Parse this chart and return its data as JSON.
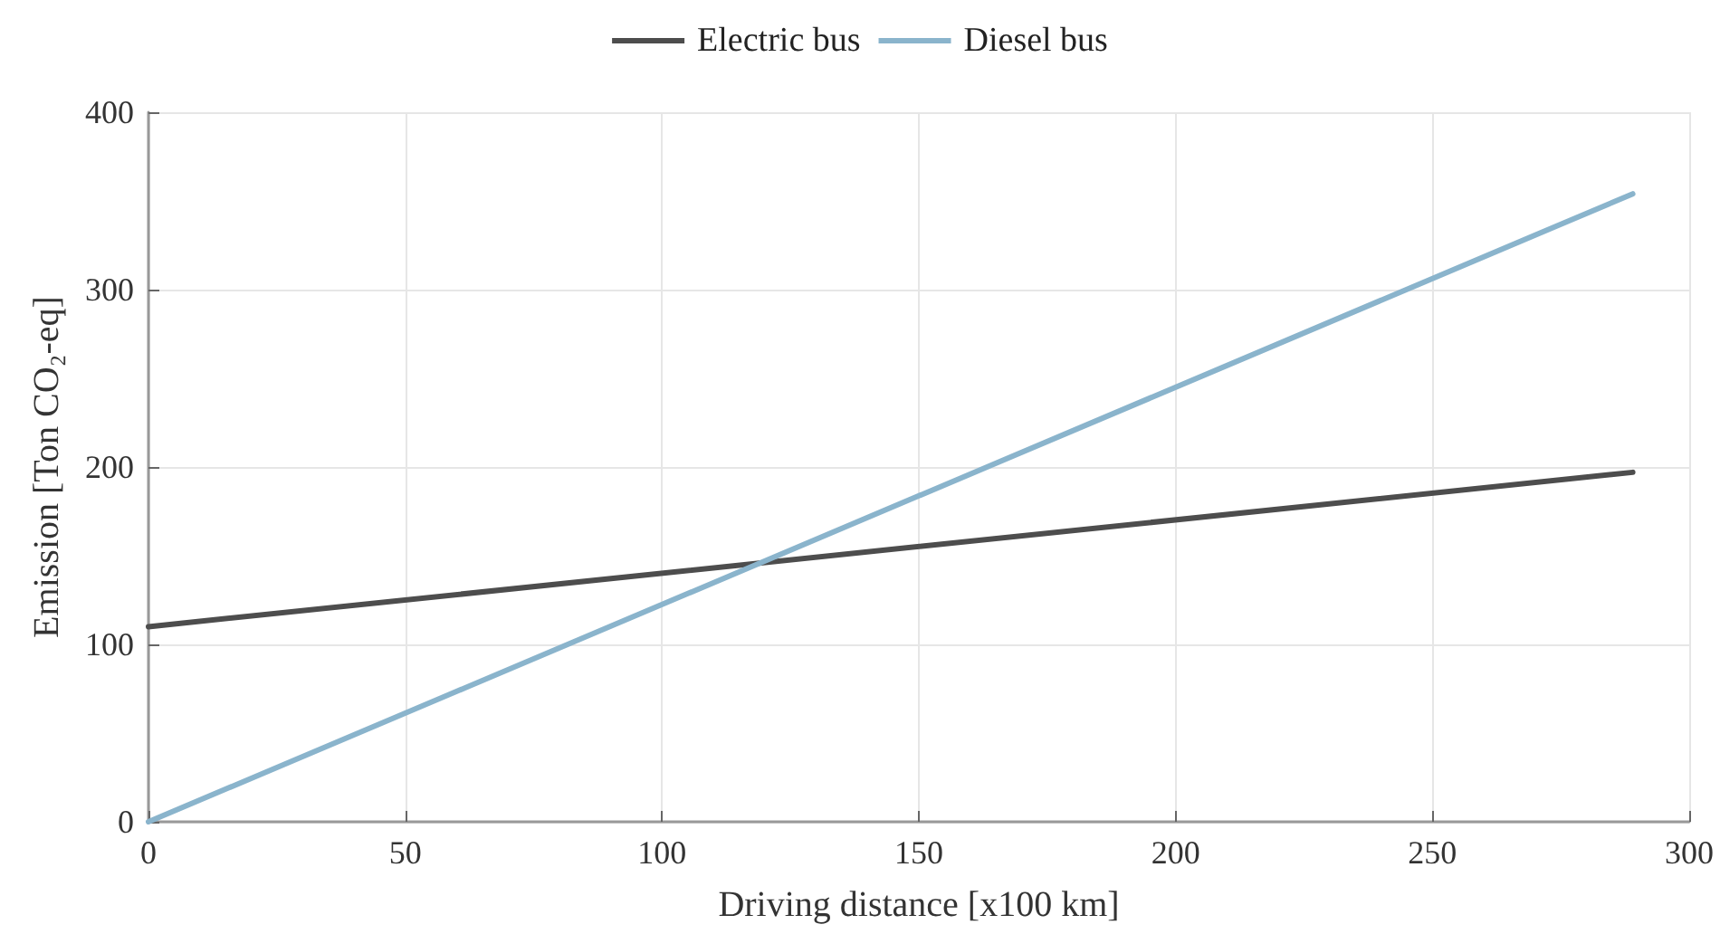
{
  "chart_data": {
    "type": "line",
    "xlabel": "Driving distance [x100 km]",
    "ylabel": "Emission [Ton CO₂-eq]",
    "series": [
      {
        "name": "Electric bus",
        "color": "#4d4d4d",
        "values": [
          110,
          197
        ]
      },
      {
        "name": "Diesel bus",
        "color": "#8ab4cc",
        "values": [
          0,
          354
        ]
      }
    ],
    "x": [
      0,
      289
    ],
    "xlim": [
      0,
      300
    ],
    "xticks": [
      0,
      50,
      100,
      150,
      200,
      250,
      300
    ],
    "ylim": [
      0,
      400
    ],
    "yticks": [
      0,
      100,
      200,
      300,
      400
    ],
    "grid": true,
    "legend": "top",
    "marker": "none",
    "line_style": "solid"
  }
}
